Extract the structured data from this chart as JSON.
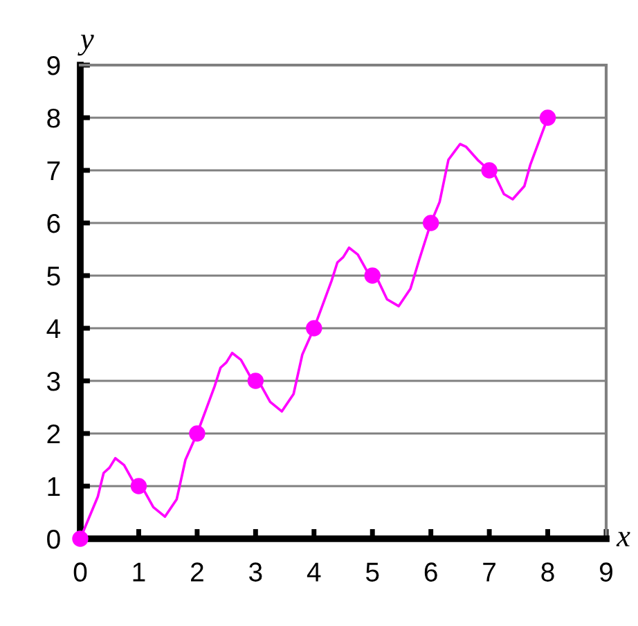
{
  "chart_data": {
    "type": "line",
    "xlabel": "x",
    "ylabel": "y",
    "xlim": [
      0,
      9
    ],
    "ylim": [
      0,
      9
    ],
    "xticks": [
      0,
      1,
      2,
      3,
      4,
      5,
      6,
      7,
      8,
      9
    ],
    "yticks": [
      0,
      1,
      2,
      3,
      4,
      5,
      6,
      7,
      8,
      9
    ],
    "grid": "y",
    "series": [
      {
        "color": "#ff00ff",
        "marker": "none",
        "x": [
          0,
          0.3,
          0.4,
          0.5,
          0.6,
          0.75,
          0.9,
          1,
          1.1,
          1.25,
          1.45,
          1.65,
          1.8,
          2,
          2.15,
          2.3,
          2.4,
          2.5,
          2.6,
          2.75,
          2.9,
          3,
          3.1,
          3.25,
          3.45,
          3.65,
          3.8,
          4,
          4.15,
          4.3,
          4.4,
          4.5,
          4.6,
          4.75,
          4.9,
          5,
          5.1,
          5.25,
          5.45,
          5.65,
          5.8,
          6,
          6.15,
          6.3,
          6.4,
          6.5,
          6.6,
          6.8,
          7,
          7.1,
          7.25,
          7.4,
          7.6,
          7.7,
          8
        ],
        "values": [
          0,
          0.8,
          1.25,
          1.35,
          1.53,
          1.4,
          1.1,
          1,
          0.9,
          0.6,
          0.42,
          0.75,
          1.5,
          2,
          2.45,
          2.9,
          3.25,
          3.35,
          3.53,
          3.4,
          3.1,
          3,
          2.9,
          2.6,
          2.42,
          2.75,
          3.5,
          4,
          4.45,
          4.9,
          5.25,
          5.35,
          5.53,
          5.4,
          5.1,
          5,
          4.9,
          4.55,
          4.42,
          4.75,
          5.3,
          6,
          6.4,
          7.2,
          7.35,
          7.5,
          7.45,
          7.2,
          7,
          6.9,
          6.55,
          6.45,
          6.7,
          7.1,
          8
        ]
      },
      {
        "type": "scatter",
        "color": "#ff00ff",
        "marker": "circle",
        "x": [
          0,
          1,
          2,
          3,
          4,
          5,
          6,
          7,
          8
        ],
        "values": [
          0,
          1,
          2,
          3,
          4,
          5,
          6,
          7,
          8
        ]
      }
    ]
  }
}
